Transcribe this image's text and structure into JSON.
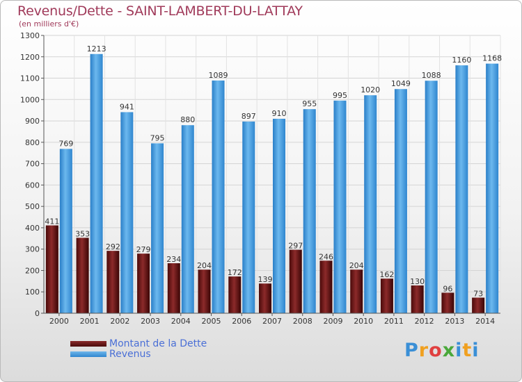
{
  "title": "Revenus/Dette - SAINT-LAMBERT-DU-LATTAY",
  "subtitle": "(en milliers d'€)",
  "legend": {
    "dette": "Montant de la Dette",
    "revenus": "Revenus"
  },
  "logo": "Proxiti",
  "colors": {
    "dette": "#6b1a1a",
    "revenus": "#4aa3e6",
    "title": "#a03a5a",
    "legend_text": "#4a6fd6"
  },
  "chart_data": {
    "type": "bar",
    "title": "Revenus/Dette - SAINT-LAMBERT-DU-LATTAY",
    "subtitle": "(en milliers d'€)",
    "categories": [
      "2000",
      "2001",
      "2002",
      "2003",
      "2004",
      "2005",
      "2006",
      "2007",
      "2008",
      "2009",
      "2010",
      "2011",
      "2012",
      "2013",
      "2014"
    ],
    "series": [
      {
        "name": "Montant de la Dette",
        "values": [
          411,
          353,
          292,
          279,
          234,
          204,
          172,
          139,
          297,
          246,
          204,
          162,
          130,
          96,
          73
        ]
      },
      {
        "name": "Revenus",
        "values": [
          769,
          1213,
          941,
          795,
          880,
          1089,
          897,
          910,
          955,
          995,
          1020,
          1049,
          1088,
          1160,
          1168
        ]
      }
    ],
    "yticks": [
      0,
      100,
      200,
      300,
      400,
      500,
      600,
      700,
      800,
      900,
      1000,
      1100,
      1200,
      1300
    ],
    "ylim": [
      0,
      1300
    ],
    "grid": true,
    "legend_position": "bottom-left"
  }
}
